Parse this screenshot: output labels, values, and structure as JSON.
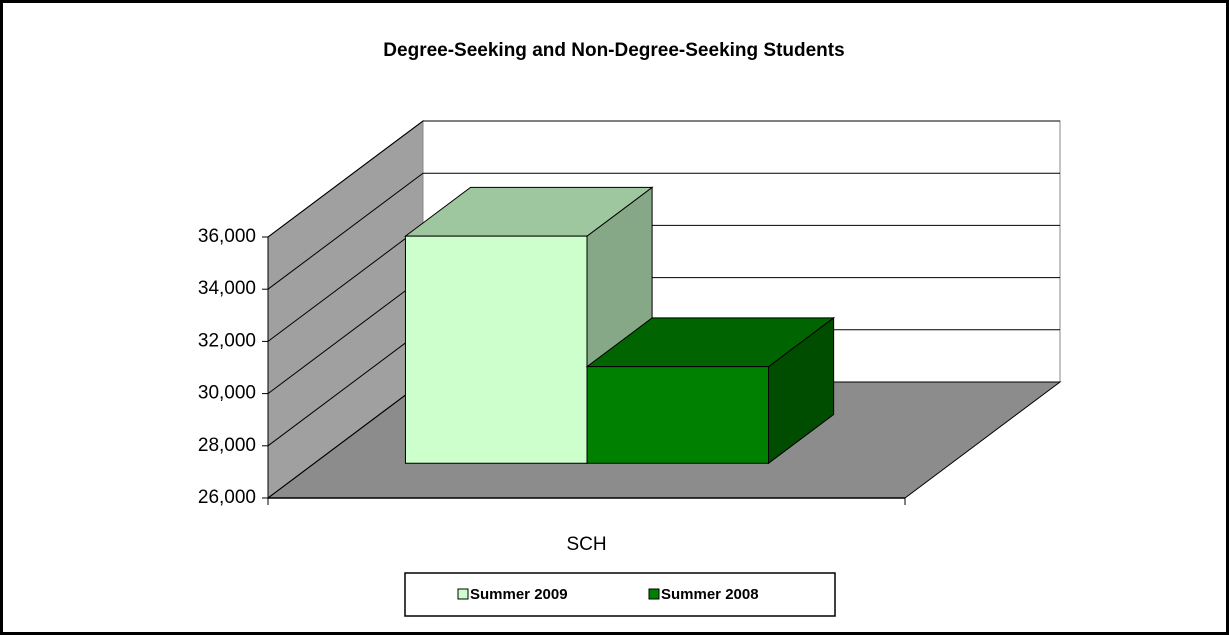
{
  "chart_data": {
    "type": "bar",
    "title": "Degree-Seeking and Non-Degree-Seeking Students",
    "categories": [
      "SCH"
    ],
    "series": [
      {
        "name": "Summer 2009",
        "color": "#ccffcc",
        "values": [
          34700
        ]
      },
      {
        "name": "Summer 2008",
        "color": "#008000",
        "values": [
          29700
        ]
      }
    ],
    "ylim": [
      26000,
      36000
    ],
    "yticks": [
      {
        "value": 26000,
        "label": "26,000"
      },
      {
        "value": 28000,
        "label": "28,000"
      },
      {
        "value": 30000,
        "label": "30,000"
      },
      {
        "value": 32000,
        "label": "32,000"
      },
      {
        "value": 34000,
        "label": "34,000"
      },
      {
        "value": 36000,
        "label": "36,000"
      }
    ],
    "grid": true,
    "legend": "bottom"
  }
}
